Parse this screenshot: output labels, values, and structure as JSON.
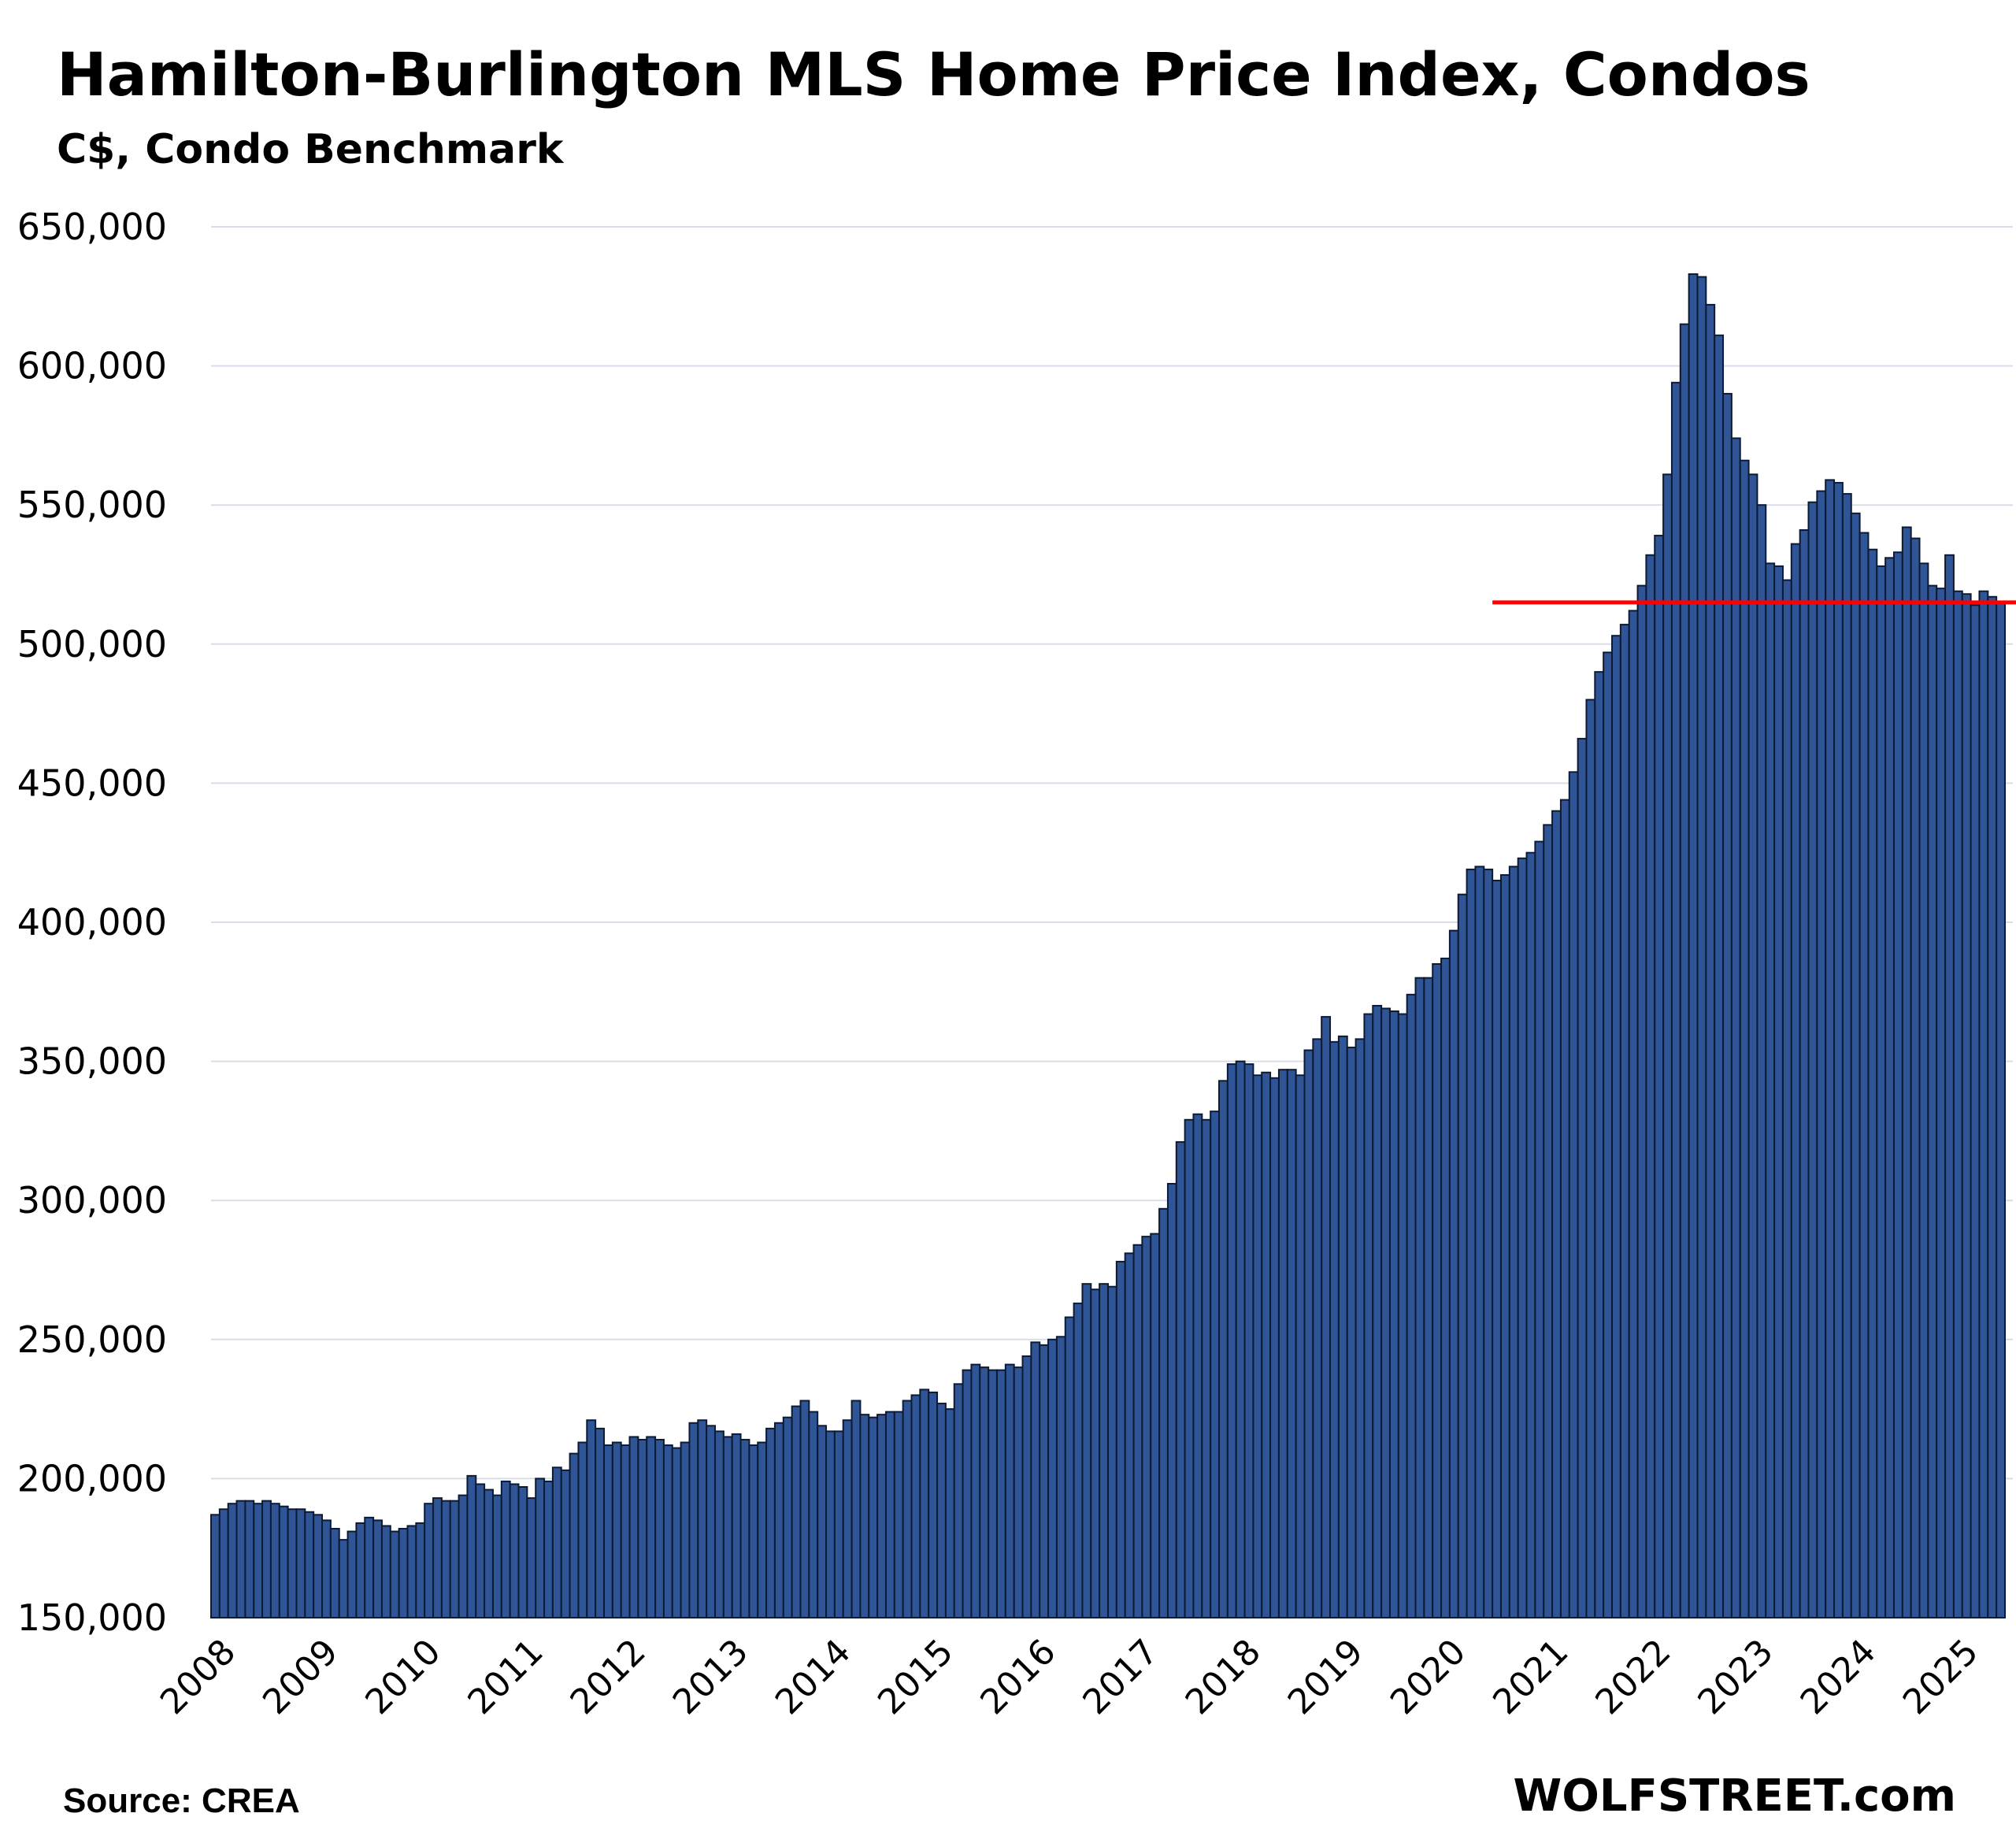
{
  "header": {
    "title": "Hamilton-Burlington MLS Home Price Index, Condos",
    "subtitle": "C$, Condo Benchmark"
  },
  "footer": {
    "source": "Source: CREA",
    "brand": "WOLFSTREET.com"
  },
  "colors": {
    "bar_fill": "#2f5597",
    "bar_edge": "#0d1a33",
    "reference_line": "#ff0000",
    "gridline": "#d9dde8"
  },
  "chart_data": {
    "type": "bar",
    "title": "Hamilton-Burlington MLS Home Price Index, Condos",
    "subtitle": "C$, Condo Benchmark",
    "xlabel": "",
    "ylabel": "",
    "ylim": [
      150000,
      650000
    ],
    "y_ticks": [
      "150,000",
      "200,000",
      "250,000",
      "300,000",
      "350,000",
      "400,000",
      "450,000",
      "500,000",
      "550,000",
      "600,000",
      "650,000"
    ],
    "x_ticks": [
      "2008",
      "2009",
      "2010",
      "2011",
      "2012",
      "2013",
      "2014",
      "2015",
      "2016",
      "2017",
      "2018",
      "2019",
      "2020",
      "2021",
      "2022",
      "2023",
      "2024",
      "2025"
    ],
    "start": "2008-01",
    "frequency": "monthly",
    "grid": true,
    "legend": "none",
    "reference_line": {
      "value": 515000,
      "from": "2020-07"
    },
    "values": [
      187000,
      189000,
      191000,
      192000,
      192000,
      191000,
      192000,
      191000,
      190000,
      189000,
      189000,
      188000,
      187000,
      185000,
      182000,
      178000,
      181000,
      184000,
      186000,
      185000,
      183000,
      181000,
      182000,
      183000,
      184000,
      191000,
      193000,
      192000,
      192000,
      194000,
      201000,
      198000,
      196000,
      194000,
      199000,
      198000,
      197000,
      193000,
      200000,
      199000,
      204000,
      203000,
      209000,
      213000,
      221000,
      218000,
      212000,
      213000,
      212000,
      215000,
      214000,
      215000,
      214000,
      212000,
      211000,
      213000,
      220000,
      221000,
      219000,
      217000,
      215000,
      216000,
      214000,
      212000,
      213000,
      218000,
      220000,
      222000,
      226000,
      228000,
      224000,
      219000,
      217000,
      217000,
      221000,
      228000,
      223000,
      222000,
      223000,
      224000,
      224000,
      228000,
      230000,
      232000,
      231000,
      227000,
      225000,
      234000,
      239000,
      241000,
      240000,
      239000,
      239000,
      241000,
      240000,
      244000,
      249000,
      248000,
      250000,
      251000,
      258000,
      263000,
      270000,
      268000,
      270000,
      269000,
      278000,
      281000,
      284000,
      287000,
      288000,
      297000,
      306000,
      321000,
      329000,
      331000,
      329000,
      332000,
      343000,
      349000,
      350000,
      349000,
      345000,
      346000,
      344000,
      347000,
      347000,
      345000,
      354000,
      358000,
      366000,
      357000,
      359000,
      355000,
      358000,
      367000,
      370000,
      369000,
      368000,
      367000,
      374000,
      380000,
      380000,
      385000,
      387000,
      397000,
      410000,
      419000,
      420000,
      419000,
      415000,
      417000,
      420000,
      423000,
      425000,
      429000,
      435000,
      440000,
      444000,
      454000,
      466000,
      480000,
      490000,
      497000,
      503000,
      507000,
      512000,
      521000,
      532000,
      539000,
      561000,
      594000,
      615000,
      633000,
      632000,
      622000,
      611000,
      590000,
      574000,
      566000,
      561000,
      550000,
      529000,
      528000,
      523000,
      536000,
      541000,
      551000,
      555000,
      559000,
      558000,
      554000,
      547000,
      540000,
      534000,
      528000,
      531000,
      533000,
      542000,
      538000,
      529000,
      521000,
      520000,
      532000,
      519000,
      518000,
      514000,
      519000,
      517000,
      515000
    ]
  }
}
